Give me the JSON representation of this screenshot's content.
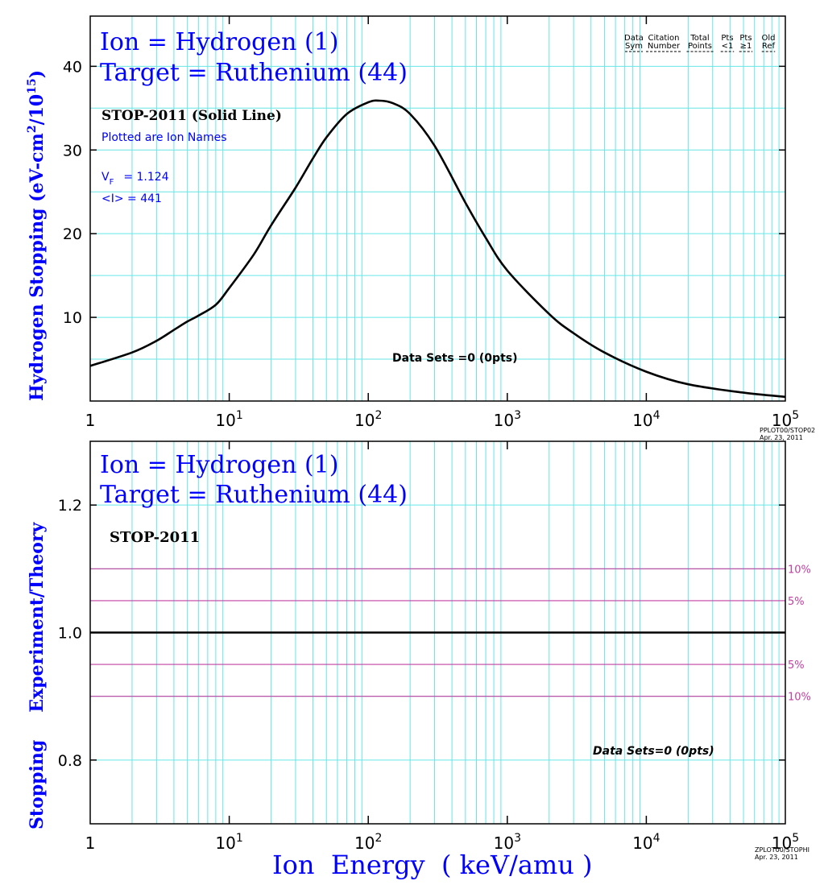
{
  "top_panel": {
    "title_line1": "Ion = Hydrogen (1)",
    "title_line2": "Target = Ruthenium (44)",
    "curve_label": "STOP-2011 (Solid Line)",
    "subtitle": "Plotted are Ion Names",
    "vf_symbol": "V",
    "vf_subscript": "F",
    "vf_value": "= 1.124",
    "i_text": "<I> = 441",
    "data_sets": "Data Sets =0 (0pts)",
    "ylabel_main": "Hydrogen Stopping (eV-cm",
    "ylabel_sup1": "2",
    "ylabel_mid": "/10",
    "ylabel_sup2": "15",
    "ylabel_end": ")",
    "legend_headers": [
      [
        "Data",
        "Sym"
      ],
      [
        "Citation",
        "Number"
      ],
      [
        "Total",
        "Points"
      ],
      [
        "Pts",
        "<1"
      ],
      [
        "Pts",
        "≥1"
      ],
      [
        "Old",
        "Ref"
      ]
    ],
    "stamp_line1": "PPLOT00/STOP02",
    "stamp_line2": "Apr. 23, 2011"
  },
  "bottom_panel": {
    "title_line1": "Ion = Hydrogen (1)",
    "title_line2": "Target = Ruthenium (44)",
    "curve_label": "STOP-2011",
    "data_sets": "Data Sets=0 (0pts)",
    "ylabel_part1": "Stopping",
    "ylabel_part2": "Experiment/Theory",
    "band_labels": [
      "10%",
      "5%",
      "5%",
      "10%"
    ],
    "stamp_line1": "ZPLOT00/STOPHI",
    "stamp_line2": "Apr. 23, 2011"
  },
  "x_axis_title": "Ion  Energy  ( keV/amu )",
  "x_tick_labels": [
    {
      "base": "1",
      "exp": ""
    },
    {
      "base": "10",
      "exp": "1"
    },
    {
      "base": "10",
      "exp": "2"
    },
    {
      "base": "10",
      "exp": "3"
    },
    {
      "base": "10",
      "exp": "4"
    },
    {
      "base": "10",
      "exp": "5"
    }
  ],
  "colors": {
    "title_blue": "#0000ff",
    "grid_cyan": "#66e6e6",
    "band_magenta": "#c040a0",
    "curve": "#000000"
  },
  "chart_data": [
    {
      "type": "line",
      "xscale": "log",
      "xlim": [
        1,
        100000
      ],
      "ylim": [
        0,
        46
      ],
      "yticks": [
        10,
        20,
        30,
        40
      ],
      "xlabel": "",
      "ylabel": "Hydrogen Stopping (eV-cm2/1015)",
      "grid": true,
      "series": [
        {
          "name": "STOP-2011 (Solid Line)",
          "x": [
            1,
            2,
            3,
            4,
            5,
            6,
            8,
            10,
            15,
            20,
            30,
            40,
            50,
            70,
            100,
            120,
            150,
            200,
            300,
            500,
            700,
            1000,
            2000,
            3000,
            5000,
            10000,
            20000,
            50000,
            100000
          ],
          "y": [
            4.2,
            5.8,
            7.2,
            8.5,
            9.5,
            10.2,
            11.5,
            13.5,
            17.5,
            21.0,
            25.5,
            29.0,
            31.5,
            34.3,
            35.7,
            35.9,
            35.6,
            34.3,
            30.5,
            23.7,
            19.5,
            15.6,
            10.4,
            8.1,
            5.8,
            3.5,
            2.0,
            1.0,
            0.5
          ]
        }
      ]
    },
    {
      "type": "line",
      "xscale": "log",
      "xlim": [
        1,
        100000
      ],
      "ylim": [
        0.7,
        1.3
      ],
      "yticks": [
        0.8,
        1.0,
        1.2
      ],
      "xlabel": "Ion  Energy  ( keV/amu )",
      "ylabel": "Stopping Experiment/Theory",
      "grid": true,
      "series": [
        {
          "name": "STOP-2011",
          "x": [
            1,
            100000
          ],
          "y": [
            1.0,
            1.0
          ]
        }
      ],
      "reference_lines": [
        {
          "label": "10%",
          "y": 1.1
        },
        {
          "label": "5%",
          "y": 1.05
        },
        {
          "label": "5%",
          "y": 0.95
        },
        {
          "label": "10%",
          "y": 0.9
        }
      ]
    }
  ]
}
